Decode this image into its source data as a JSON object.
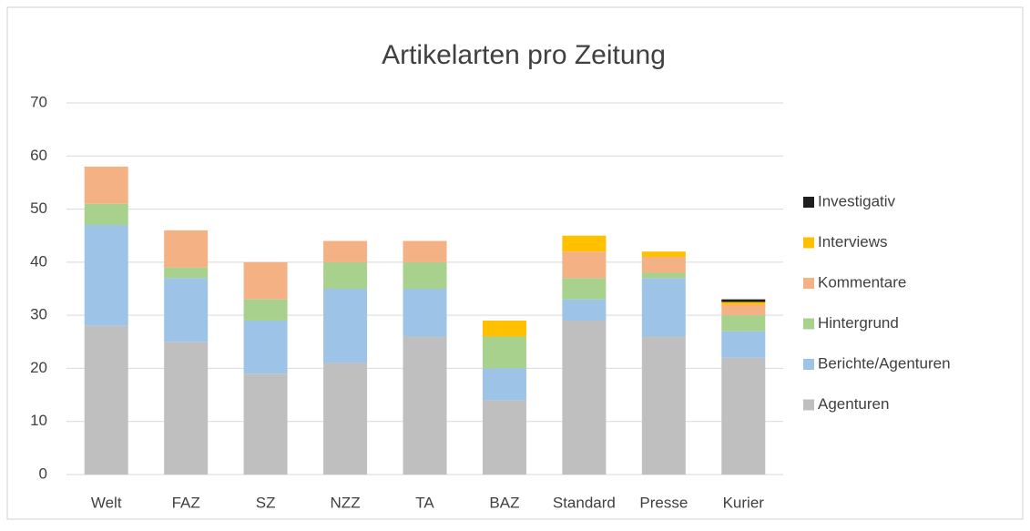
{
  "chart_data": {
    "type": "stacked_bar",
    "title": "Artikelarten pro Zeitung",
    "categories": [
      "Welt",
      "FAZ",
      "SZ",
      "NZZ",
      "TA",
      "BAZ",
      "Standard",
      "Presse",
      "Kurier"
    ],
    "series": [
      {
        "name": "Agenturen",
        "color": "#bfbfbf",
        "values": [
          28,
          25,
          19,
          21,
          26,
          14,
          29,
          26,
          22
        ]
      },
      {
        "name": "Berichte/Agenturen",
        "color": "#9dc3e6",
        "values": [
          19,
          12,
          10,
          14,
          9,
          6,
          4,
          11,
          5
        ]
      },
      {
        "name": "Hintergrund",
        "color": "#a9d18e",
        "values": [
          4,
          2,
          4,
          5,
          5,
          6,
          4,
          1,
          3
        ]
      },
      {
        "name": "Kommentare",
        "color": "#f4b183",
        "values": [
          7,
          7,
          7,
          4,
          4,
          0,
          5,
          3,
          2
        ]
      },
      {
        "name": "Interviews",
        "color": "#ffc000",
        "values": [
          0,
          0,
          0,
          0,
          0,
          3,
          3,
          1,
          0.5
        ]
      },
      {
        "name": "Investigativ",
        "color": "#1f1f1f",
        "values": [
          0,
          0,
          0,
          0,
          0,
          0,
          0,
          0,
          0.5
        ]
      }
    ],
    "ylim": [
      0,
      70
    ],
    "yticks": [
      0,
      10,
      20,
      30,
      40,
      50,
      60,
      70
    ],
    "grid": true,
    "legend": "right"
  }
}
